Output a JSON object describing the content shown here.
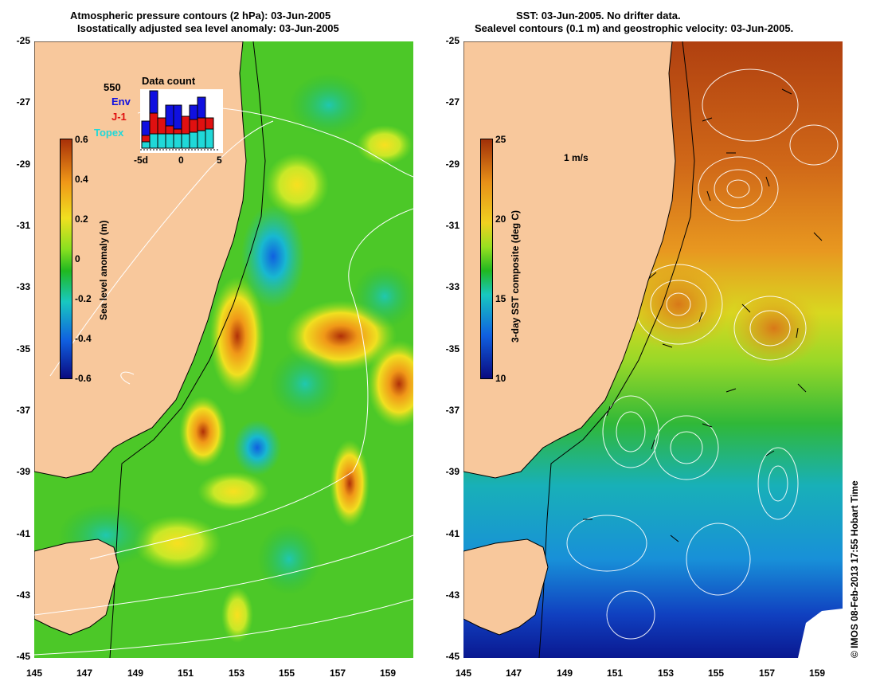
{
  "left_panel": {
    "title_line1": "Atmospheric pressure contours (2 hPa): 03-Jun-2005",
    "title_line2": "Isostatically adjusted sea level anomaly: 03-Jun-2005",
    "colorbar_label": "Sea level anomaly (m)",
    "colorbar_ticks": [
      "0.6",
      "0.4",
      "0.2",
      "0",
      "-0.2",
      "-0.4",
      "-0.6"
    ],
    "data_count": {
      "title": "Data count",
      "total": "550",
      "legend": [
        {
          "label": "Env",
          "color": "#1010e0"
        },
        {
          "label": "J-1",
          "color": "#e01010"
        },
        {
          "label": "Topex",
          "color": "#20d8d8"
        }
      ],
      "x_ticks": [
        "-5d",
        "0",
        "5"
      ]
    }
  },
  "right_panel": {
    "title_line1": "SST: 03-Jun-2005. No drifter data.",
    "title_line2": "Sealevel contours (0.1 m) and geostrophic velocity: 03-Jun-2005.",
    "colorbar_label": "3-day SST composite (deg C)",
    "colorbar_ticks": [
      "25",
      "20",
      "15",
      "10"
    ],
    "velocity_scale_label": "1 m/s"
  },
  "lat_ticks": [
    "-25",
    "-27",
    "-29",
    "-31",
    "-33",
    "-35",
    "-37",
    "-39",
    "-41",
    "-43",
    "-45"
  ],
  "lon_ticks": [
    "145",
    "147",
    "149",
    "151",
    "153",
    "155",
    "157",
    "159"
  ],
  "credit": "© IMOS 08-Feb-2013 17:55 Hobart Time",
  "colors": {
    "land": "#f8c89c",
    "sla_ramp": [
      "#0a0a80",
      "#1060e0",
      "#18c8c0",
      "#20b820",
      "#88e020",
      "#f0e020",
      "#f09818",
      "#a83008"
    ],
    "sst_ramp": [
      "#0a0a80",
      "#1060e0",
      "#18c8c0",
      "#20b820",
      "#98e020",
      "#f0d020",
      "#e89018",
      "#a03008"
    ]
  }
}
